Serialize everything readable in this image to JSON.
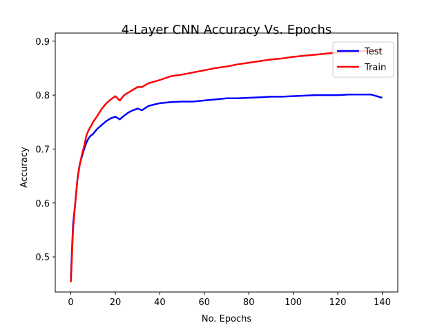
{
  "chart_data": {
    "type": "line",
    "title": "4-Layer CNN Accuracy Vs. Epochs",
    "xlabel": "No. Epochs",
    "ylabel": "Accuracy",
    "xlim": [
      -7,
      147
    ],
    "ylim": [
      0.435,
      0.915
    ],
    "xticks": [
      0,
      20,
      40,
      60,
      80,
      100,
      120,
      140
    ],
    "yticks": [
      0.5,
      0.6,
      0.7,
      0.8,
      0.9
    ],
    "grid": false,
    "legend_position": "top-right",
    "series": [
      {
        "name": "Test",
        "color": "#0000ff",
        "x": [
          0,
          1,
          2,
          3,
          4,
          5,
          6,
          7,
          8,
          9,
          10,
          12,
          14,
          16,
          18,
          20,
          22,
          24,
          26,
          28,
          30,
          32,
          35,
          40,
          45,
          50,
          55,
          60,
          65,
          70,
          75,
          80,
          85,
          90,
          95,
          100,
          105,
          110,
          115,
          120,
          125,
          130,
          135,
          140
        ],
        "y": [
          0.46,
          0.56,
          0.6,
          0.645,
          0.672,
          0.686,
          0.7,
          0.712,
          0.72,
          0.725,
          0.728,
          0.738,
          0.745,
          0.752,
          0.757,
          0.76,
          0.755,
          0.762,
          0.768,
          0.772,
          0.775,
          0.772,
          0.78,
          0.785,
          0.787,
          0.788,
          0.788,
          0.79,
          0.792,
          0.794,
          0.794,
          0.795,
          0.796,
          0.797,
          0.797,
          0.798,
          0.799,
          0.8,
          0.8,
          0.8,
          0.801,
          0.801,
          0.801,
          0.795
        ]
      },
      {
        "name": "Train",
        "color": "#ff0000",
        "x": [
          0,
          1,
          2,
          3,
          4,
          5,
          6,
          7,
          8,
          9,
          10,
          12,
          14,
          16,
          18,
          20,
          22,
          24,
          26,
          28,
          30,
          32,
          35,
          40,
          45,
          50,
          55,
          60,
          65,
          70,
          75,
          80,
          85,
          90,
          95,
          100,
          105,
          110,
          115,
          120,
          125,
          130,
          135,
          140
        ],
        "y": [
          0.453,
          0.55,
          0.6,
          0.645,
          0.67,
          0.69,
          0.705,
          0.725,
          0.735,
          0.742,
          0.75,
          0.762,
          0.775,
          0.785,
          0.792,
          0.798,
          0.79,
          0.8,
          0.805,
          0.81,
          0.815,
          0.815,
          0.822,
          0.828,
          0.835,
          0.838,
          0.842,
          0.846,
          0.85,
          0.853,
          0.857,
          0.86,
          0.863,
          0.866,
          0.868,
          0.871,
          0.873,
          0.875,
          0.877,
          0.879,
          0.88,
          0.881,
          0.882,
          0.883
        ]
      }
    ]
  }
}
